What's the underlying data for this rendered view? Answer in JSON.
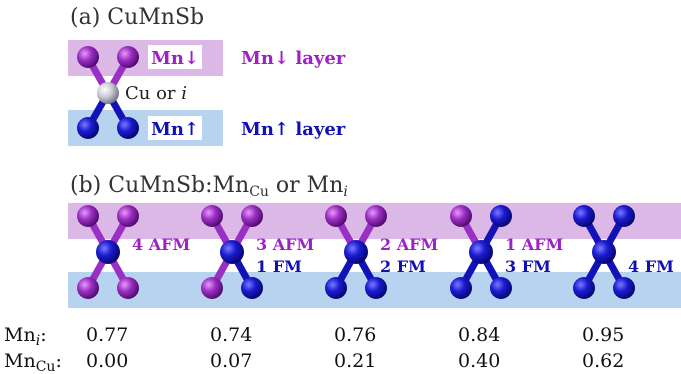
{
  "colors": {
    "mn_down": "#9a2fc4",
    "mn_up": "#1212b8",
    "down_layer_bg": "#dcb8e6",
    "up_layer_bg": "#b8d3ef",
    "cu_atom": "#c8c8d2",
    "label_down": "#a020c8",
    "label_up": "#1010b4"
  },
  "panel_a": {
    "title": "(a) CuMnSb",
    "mn_down_label": "Mn↓",
    "mn_up_label": "Mn↑",
    "center_label": "Cu or ",
    "center_label_italic": "i",
    "mn_down_layer": "Mn↓ layer",
    "mn_up_layer": "Mn↑ layer"
  },
  "panel_b": {
    "title_prefix": "(b) CuMnSb:Mn",
    "title_sub": "Cu",
    "title_mid": " or Mn",
    "title_sub2": "i",
    "configs": [
      {
        "top": "4 AFM",
        "bottom": "",
        "up_count": 0
      },
      {
        "top": "3 AFM",
        "bottom": "1 FM",
        "up_count": 1
      },
      {
        "top": "2 AFM",
        "bottom": "2 FM",
        "up_count": 2
      },
      {
        "top": "1 AFM",
        "bottom": "3 FM",
        "up_count": 3
      },
      {
        "top": "",
        "bottom": "4 FM",
        "up_count": 4
      }
    ]
  },
  "table": {
    "rows": [
      {
        "label": "Mn",
        "sub": "i",
        "values": [
          "0.77",
          "0.74",
          "0.76",
          "0.84",
          "0.95"
        ]
      },
      {
        "label": "Mn",
        "sub": "Cu",
        "values": [
          "0.00",
          "0.07",
          "0.21",
          "0.40",
          "0.62"
        ]
      }
    ]
  }
}
